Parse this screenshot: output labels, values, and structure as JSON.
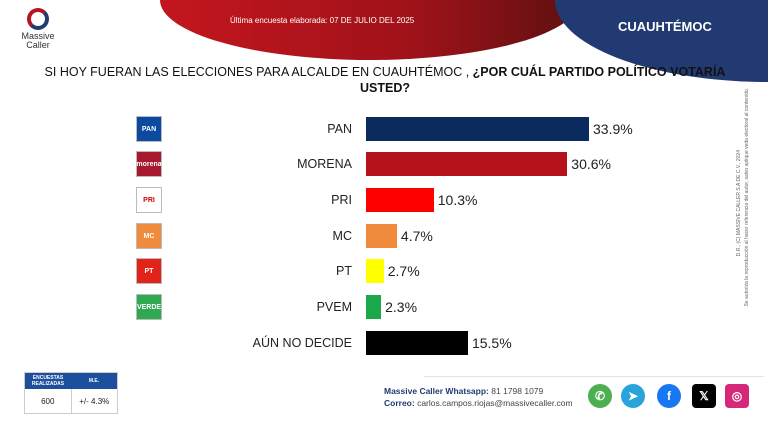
{
  "header": {
    "subtitle": "Última encuesta elaborada: 07 DE JULIO DEL 2025",
    "city": "CUAUHTÉMOC",
    "logo_text": "Massive Caller"
  },
  "question": {
    "normal": "SI HOY FUERAN LAS ELECCIONES PARA ALCALDE EN CUAUHTÉMOC , ",
    "bold": "¿POR CUÁL PARTIDO POLÍTICO VOTARÍA USTED?"
  },
  "chart_data": {
    "type": "bar",
    "orientation": "horizontal",
    "categories": [
      "PAN",
      "MORENA",
      "PRI",
      "MC",
      "PT",
      "PVEM",
      "AÚN NO DECIDE"
    ],
    "values": [
      33.9,
      30.6,
      10.3,
      4.7,
      2.7,
      2.3,
      15.5
    ],
    "labels": [
      "33.9%",
      "30.6%",
      "10.3%",
      "4.7%",
      "2.7%",
      "2.3%",
      "15.5%"
    ],
    "colors": [
      "#0b2a5e",
      "#b5121b",
      "#ff0000",
      "#f08a3c",
      "#ffff00",
      "#1aa84a",
      "#000000"
    ],
    "logo_text": [
      "PAN",
      "morena",
      "PRI",
      "MC",
      "PT",
      "VERDE",
      ""
    ],
    "logo_colors": [
      "#0b4aa0",
      "#a6192e",
      "#ffffff",
      "#f08a3c",
      "#e2231a",
      "#2fa84f",
      ""
    ],
    "grid": false,
    "legend": "none"
  },
  "legal": {
    "line1": "D.R., (C) MASSIVE CALLER S.A DE C.V., 2024",
    "line2": "Se autoriza la reproducción al hacer referencia del autor, salvo aplique veda electoral al contenido."
  },
  "stats": {
    "h1": "ENCUESTAS REALIZADAS",
    "h2": "M.E.",
    "v1": "600",
    "v2": "+/- 4.3%"
  },
  "contact": {
    "wa_label": "Massive Caller Whatsapp:",
    "wa": "81 1798 1079",
    "mail_label": "Correo:",
    "mail": "carlos.campos.riojas@massivecaller.com"
  },
  "social": [
    {
      "icon": "whatsapp-icon",
      "color": "#4caf50",
      "glyph": "✆"
    },
    {
      "icon": "telegram-icon",
      "color": "#2aa3dc",
      "glyph": "➤"
    },
    {
      "icon": "facebook-icon",
      "color": "#1877f2",
      "glyph": "f"
    },
    {
      "icon": "x-icon",
      "color": "#000000",
      "glyph": "𝕏"
    },
    {
      "icon": "instagram-icon",
      "color": "#d6287a",
      "glyph": "◎"
    }
  ]
}
